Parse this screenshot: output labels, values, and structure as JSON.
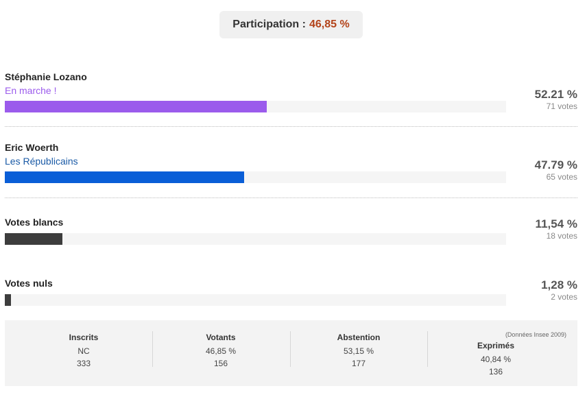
{
  "participation": {
    "label": "Participation :",
    "value": "46,85 %"
  },
  "candidates": [
    {
      "name": "Stéphanie Lozano",
      "party": "En marche !",
      "percent": "52.21 %",
      "votes": "71 votes",
      "share": 0.5221,
      "color": "#9b5bec",
      "party_color": "#9b5bec"
    },
    {
      "name": "Eric Woerth",
      "party": "Les Républicains",
      "percent": "47.79 %",
      "votes": "65 votes",
      "share": 0.4779,
      "color": "#0a5ed7",
      "party_color": "#1a5aa6"
    }
  ],
  "blank_votes": {
    "label": "Votes blancs",
    "percent": "11,54 %",
    "votes": "18 votes",
    "share": 0.1154,
    "color": "#3d3d3d"
  },
  "null_votes": {
    "label": "Votes nuls",
    "percent": "1,28 %",
    "votes": "2 votes",
    "share": 0.0128,
    "color": "#3d3d3d"
  },
  "stats": {
    "inscrits": {
      "label": "Inscrits",
      "line1": "NC",
      "line2": "333"
    },
    "votants": {
      "label": "Votants",
      "line1": "46,85 %",
      "line2": "156"
    },
    "abstention": {
      "label": "Abstention",
      "line1": "53,15 %",
      "line2": "177"
    },
    "exprimes": {
      "label": "Exprimés",
      "line1": "40,84 %",
      "line2": "136"
    },
    "source": "(Données Insee 2009)"
  }
}
